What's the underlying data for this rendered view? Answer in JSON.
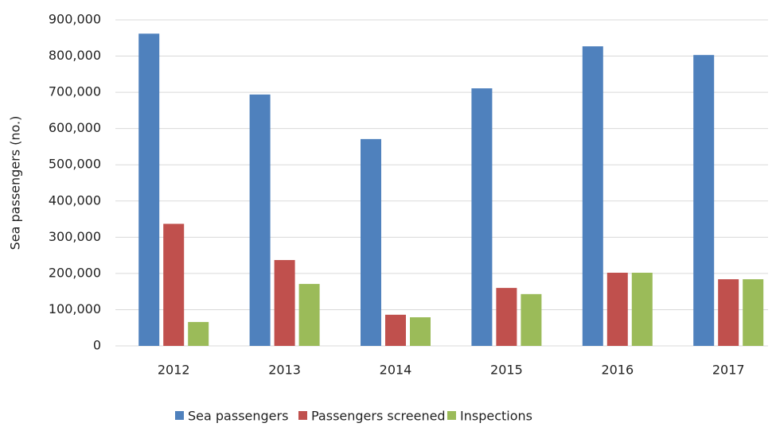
{
  "chart_data": {
    "type": "bar",
    "y_label": "Sea passengers (no.)",
    "categories": [
      "2012",
      "2013",
      "2014",
      "2015",
      "2016",
      "2017"
    ],
    "series": [
      {
        "name": "Sea passengers",
        "color": "#4f81bd",
        "values": [
          862000,
          694000,
          571000,
          711000,
          827000,
          803000
        ]
      },
      {
        "name": "Passengers screened",
        "color": "#c0504d",
        "values": [
          337000,
          237000,
          86000,
          160000,
          202000,
          184000
        ]
      },
      {
        "name": "Inspections",
        "color": "#9bbb59",
        "values": [
          66000,
          171000,
          79000,
          143000,
          202000,
          184000
        ]
      }
    ],
    "ylim": [
      0,
      900000
    ],
    "yticks": [
      0,
      {
        "value": 100000,
        "label": "100,000"
      },
      {
        "value": 200000,
        "label": "200,000"
      },
      {
        "value": 300000,
        "label": "300,000"
      },
      {
        "value": 400000,
        "label": "400,000"
      },
      {
        "value": 500000,
        "label": "500,000"
      },
      {
        "value": 600000,
        "label": "600,000"
      },
      {
        "value": 700000,
        "label": "700,000"
      },
      {
        "value": 800000,
        "label": "800,000"
      },
      {
        "value": 900000,
        "label": "900,000"
      }
    ],
    "grid": true
  }
}
